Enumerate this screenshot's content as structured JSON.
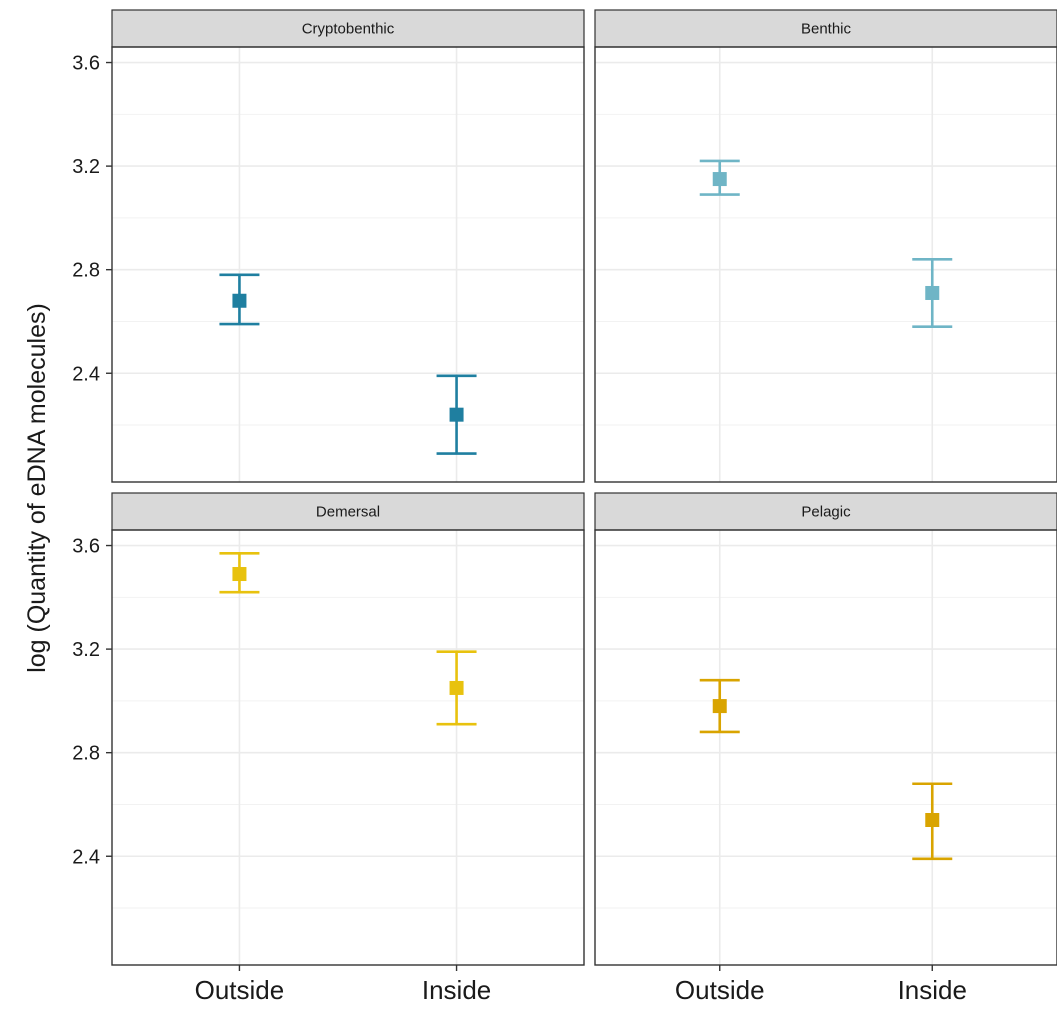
{
  "chart_data": {
    "type": "scatter",
    "title": "",
    "xlabel": "",
    "ylabel": "log (Quantity of eDNA molecules)",
    "categories": [
      "Outside",
      "Inside"
    ],
    "ylim": [
      1.98,
      3.66
    ],
    "yticks": [
      2.4,
      2.8,
      3.2,
      3.6
    ],
    "ytick_labels": [
      "2.4",
      "2.8",
      "3.2",
      "3.6"
    ],
    "grid": true,
    "legend": "none",
    "panels": [
      {
        "name": "Cryptobenthic",
        "color": "#1f7fa0",
        "points": [
          {
            "x": "Outside",
            "y": 2.68,
            "lower": 2.59,
            "upper": 2.78
          },
          {
            "x": "Inside",
            "y": 2.24,
            "lower": 2.09,
            "upper": 2.39
          }
        ]
      },
      {
        "name": "Benthic",
        "color": "#6fb5c6",
        "points": [
          {
            "x": "Outside",
            "y": 3.15,
            "lower": 3.09,
            "upper": 3.22
          },
          {
            "x": "Inside",
            "y": 2.71,
            "lower": 2.58,
            "upper": 2.84
          }
        ]
      },
      {
        "name": "Demersal",
        "color": "#e8c20e",
        "points": [
          {
            "x": "Outside",
            "y": 3.49,
            "lower": 3.42,
            "upper": 3.57
          },
          {
            "x": "Inside",
            "y": 3.05,
            "lower": 2.91,
            "upper": 3.19
          }
        ]
      },
      {
        "name": "Pelagic",
        "color": "#d9a400",
        "points": [
          {
            "x": "Outside",
            "y": 2.98,
            "lower": 2.88,
            "upper": 3.08
          },
          {
            "x": "Inside",
            "y": 2.54,
            "lower": 2.39,
            "upper": 2.68
          }
        ]
      }
    ]
  }
}
